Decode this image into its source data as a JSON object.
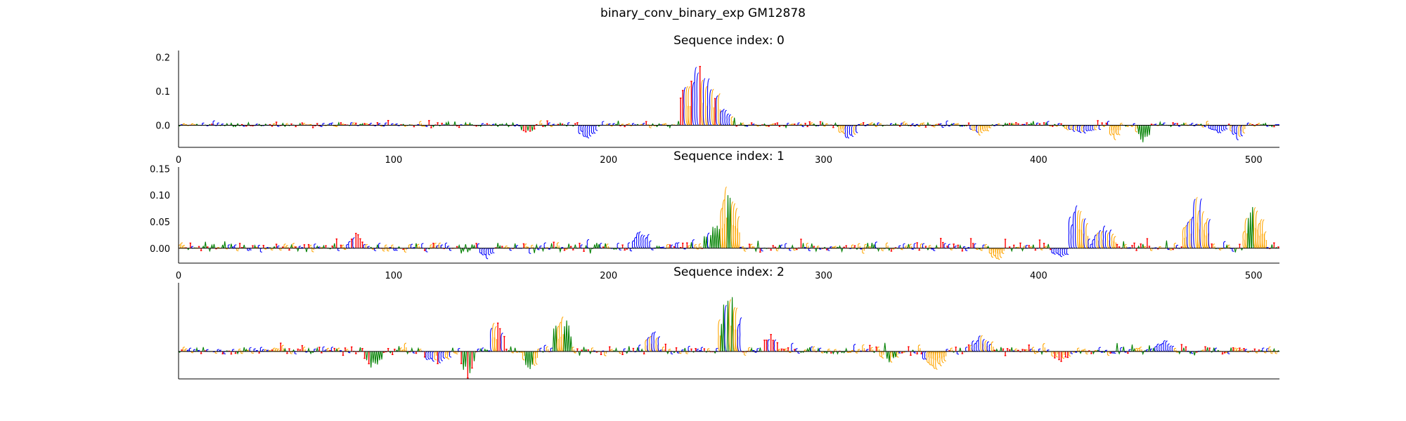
{
  "figure_title": "binary_conv_binary_exp GM12878",
  "colors": {
    "A": "#008000",
    "C": "#0000ff",
    "G": "#ffa500",
    "T": "#ff0000",
    "axis": "#000000"
  },
  "chart_data": [
    {
      "type": "sequence-logo",
      "title": "Sequence index: 0",
      "xlim": [
        0,
        512
      ],
      "ylim": [
        -0.065,
        0.22
      ],
      "xticks": [
        0,
        100,
        200,
        300,
        400,
        500
      ],
      "yticks": [
        0.0,
        0.1,
        0.2
      ],
      "ytick_labels": [
        "0.0",
        "0.1",
        "0.2"
      ],
      "show_xticks": true,
      "show_yticks": true,
      "base_noise": 0.006,
      "peaks": [
        {
          "pos": 242,
          "width": 9,
          "height": 0.2,
          "bases": [
            "C",
            "G",
            "T"
          ]
        },
        {
          "pos": 252,
          "width": 6,
          "height": 0.06,
          "bases": [
            "C",
            "A",
            "G"
          ]
        },
        {
          "pos": 190,
          "width": 4,
          "height": -0.045,
          "bases": [
            "C"
          ]
        },
        {
          "pos": 162,
          "width": 3,
          "height": -0.025,
          "bases": [
            "A",
            "T"
          ]
        },
        {
          "pos": 311,
          "width": 4,
          "height": -0.045,
          "bases": [
            "C",
            "G"
          ]
        },
        {
          "pos": 435,
          "width": 2,
          "height": -0.055,
          "bases": [
            "G"
          ]
        },
        {
          "pos": 448,
          "width": 3,
          "height": -0.05,
          "bases": [
            "A",
            "G"
          ]
        },
        {
          "pos": 492,
          "width": 3,
          "height": -0.045,
          "bases": [
            "G",
            "C"
          ]
        },
        {
          "pos": 372,
          "width": 4,
          "height": -0.03,
          "bases": [
            "C",
            "G"
          ]
        },
        {
          "pos": 420,
          "width": 8,
          "height": -0.025,
          "bases": [
            "C",
            "G"
          ]
        },
        {
          "pos": 483,
          "width": 4,
          "height": -0.025,
          "bases": [
            "C"
          ]
        }
      ]
    },
    {
      "type": "sequence-logo",
      "title": "Sequence index: 1",
      "xlim": [
        0,
        512
      ],
      "ylim": [
        -0.028,
        0.153
      ],
      "xticks": [
        0,
        100,
        200,
        300,
        400,
        500
      ],
      "yticks": [
        0.0,
        0.05,
        0.1,
        0.15
      ],
      "ytick_labels": [
        "0.00",
        "0.05",
        "0.10",
        "0.15"
      ],
      "show_xticks": true,
      "show_yticks": true,
      "base_noise": 0.008,
      "peaks": [
        {
          "pos": 256,
          "width": 4,
          "height": 0.15,
          "bases": [
            "A",
            "G"
          ]
        },
        {
          "pos": 249,
          "width": 5,
          "height": 0.05,
          "bases": [
            "C",
            "A"
          ]
        },
        {
          "pos": 418,
          "width": 4,
          "height": 0.11,
          "bases": [
            "C",
            "G"
          ]
        },
        {
          "pos": 430,
          "width": 5,
          "height": 0.05,
          "bases": [
            "C",
            "G"
          ]
        },
        {
          "pos": 473,
          "width": 6,
          "height": 0.115,
          "bases": [
            "C",
            "G"
          ]
        },
        {
          "pos": 500,
          "width": 5,
          "height": 0.095,
          "bases": [
            "G",
            "A"
          ]
        },
        {
          "pos": 215,
          "width": 4,
          "height": 0.04,
          "bases": [
            "C"
          ]
        },
        {
          "pos": 82,
          "width": 3,
          "height": 0.03,
          "bases": [
            "T",
            "C"
          ]
        },
        {
          "pos": 143,
          "width": 3,
          "height": -0.02,
          "bases": [
            "C"
          ]
        },
        {
          "pos": 380,
          "width": 3,
          "height": -0.025,
          "bases": [
            "G"
          ]
        },
        {
          "pos": 410,
          "width": 4,
          "height": -0.018,
          "bases": [
            "C"
          ]
        }
      ]
    },
    {
      "type": "sequence-logo",
      "title": "Sequence index: 2",
      "xlim": [
        0,
        512
      ],
      "ylim": [
        -0.06,
        0.15
      ],
      "xticks": [],
      "yticks": [],
      "show_xticks": false,
      "show_yticks": false,
      "base_noise": 0.008,
      "peaks": [
        {
          "pos": 256,
          "width": 5,
          "height": 0.15,
          "bases": [
            "C",
            "A",
            "G"
          ]
        },
        {
          "pos": 148,
          "width": 3,
          "height": 0.09,
          "bases": [
            "C",
            "T",
            "G"
          ]
        },
        {
          "pos": 178,
          "width": 4,
          "height": 0.095,
          "bases": [
            "G",
            "A"
          ]
        },
        {
          "pos": 220,
          "width": 3,
          "height": 0.055,
          "bases": [
            "G",
            "C"
          ]
        },
        {
          "pos": 275,
          "width": 3,
          "height": 0.045,
          "bases": [
            "C",
            "T"
          ]
        },
        {
          "pos": 134,
          "width": 3,
          "height": -0.06,
          "bases": [
            "T",
            "A"
          ]
        },
        {
          "pos": 90,
          "width": 4,
          "height": -0.04,
          "bases": [
            "A",
            "T"
          ]
        },
        {
          "pos": 163,
          "width": 3,
          "height": -0.05,
          "bases": [
            "G",
            "A"
          ]
        },
        {
          "pos": 330,
          "width": 4,
          "height": -0.03,
          "bases": [
            "A",
            "G"
          ]
        },
        {
          "pos": 350,
          "width": 4,
          "height": -0.04,
          "bases": [
            "C",
            "G"
          ]
        },
        {
          "pos": 352,
          "width": 4,
          "height": -0.045,
          "bases": [
            "G"
          ]
        },
        {
          "pos": 373,
          "width": 5,
          "height": 0.04,
          "bases": [
            "C",
            "G"
          ]
        },
        {
          "pos": 120,
          "width": 6,
          "height": -0.03,
          "bases": [
            "C",
            "T",
            "G"
          ]
        },
        {
          "pos": 458,
          "width": 4,
          "height": 0.03,
          "bases": [
            "C"
          ]
        },
        {
          "pos": 410,
          "width": 4,
          "height": -0.025,
          "bases": [
            "T",
            "G"
          ]
        }
      ]
    }
  ]
}
